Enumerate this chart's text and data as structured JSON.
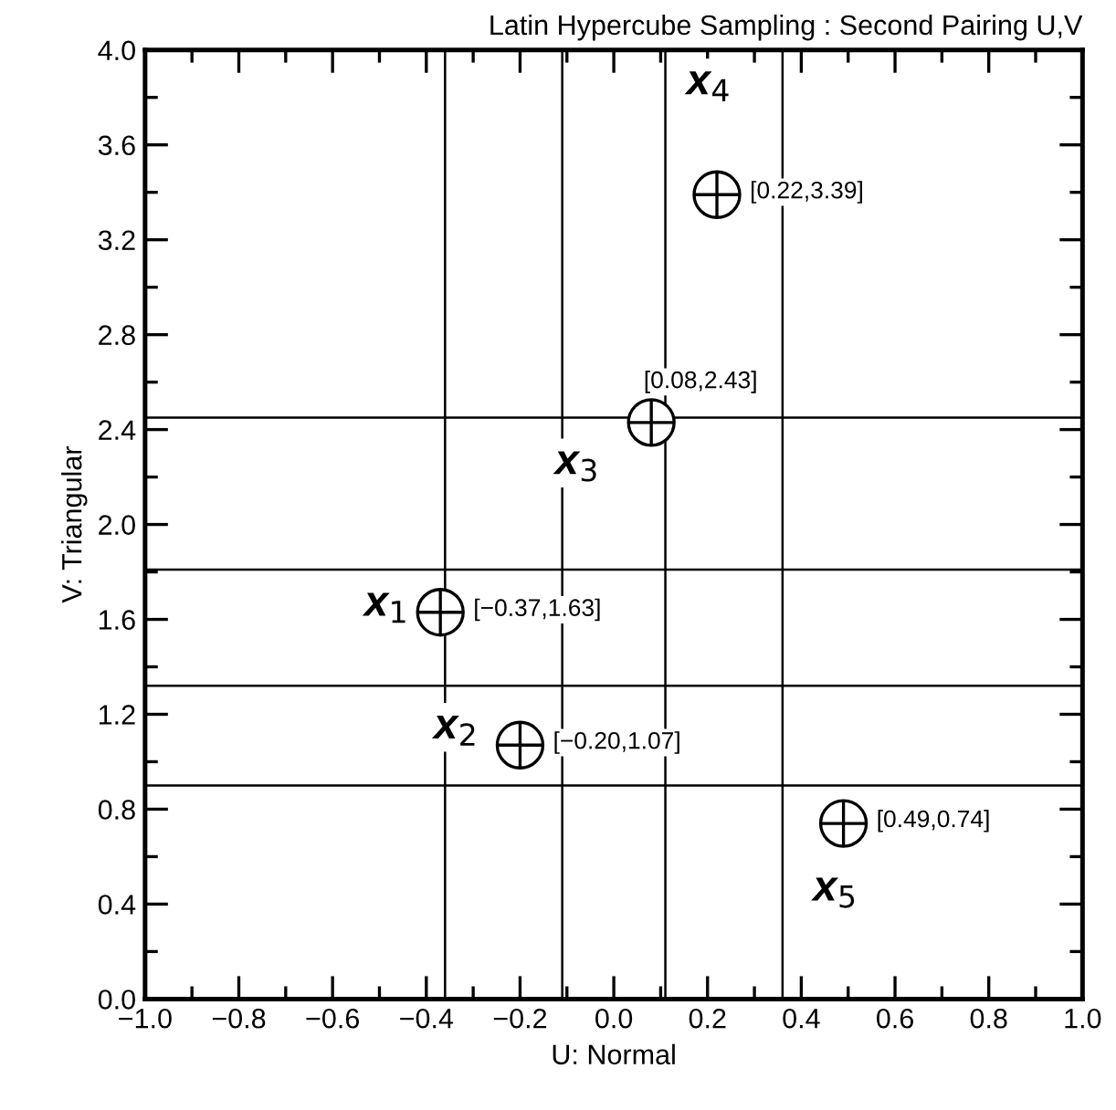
{
  "chart_data": {
    "type": "scatter",
    "title": "Latin Hypercube Sampling : Second Pairing U,V",
    "xlabel": "U: Normal",
    "ylabel": "V: Triangular",
    "series": [
      {
        "color": "#000000",
        "x": [
          -0.37,
          -0.2,
          0.08,
          0.22,
          0.49
        ],
        "values": [
          1.63,
          1.07,
          2.43,
          3.39,
          0.74
        ]
      }
    ],
    "marker": "circle",
    "annotations": [
      {
        "text": "[−0.37,1.63]",
        "x": -0.37,
        "y": 1.63
      },
      {
        "text": "[−0.20,1.07]",
        "x": -0.2,
        "y": 1.07
      },
      {
        "text": "[0.08,2.43]",
        "x": 0.08,
        "y": 2.43
      },
      {
        "text": "[0.22,3.39]",
        "x": 0.22,
        "y": 3.39
      },
      {
        "text": "[0.49,0.74]",
        "x": 0.49,
        "y": 0.74
      },
      {
        "text": "x$_{1}$",
        "x": -0.37,
        "y": 1.63
      },
      {
        "text": "x$_{2}$",
        "x": -0.2,
        "y": 1.07
      },
      {
        "text": "x$_{3}$",
        "x": 0.08,
        "y": 2.43
      },
      {
        "text": "x$_{4}$",
        "x": 0.22,
        "y": 3.39
      },
      {
        "text": "x$_{5}$",
        "x": 0.49,
        "y": 0.74
      }
    ],
    "ref_lines": [
      {
        "axis": "x",
        "value": -0.36
      },
      {
        "axis": "x",
        "value": -0.11
      },
      {
        "axis": "x",
        "value": 0.11
      },
      {
        "axis": "x",
        "value": 0.36
      },
      {
        "axis": "y",
        "value": 0.9
      },
      {
        "axis": "y",
        "value": 1.32
      },
      {
        "axis": "y",
        "value": 1.81
      },
      {
        "axis": "y",
        "value": 2.45
      }
    ],
    "xlim": [
      -1.0,
      1.0
    ],
    "ylim": [
      0.0,
      4.0
    ],
    "xticks": [
      {
        "value": -1.0,
        "label": "−1.0"
      },
      {
        "value": -0.8,
        "label": "−0.8"
      },
      {
        "value": -0.6,
        "label": "−0.6"
      },
      {
        "value": -0.4,
        "label": "−0.4"
      },
      {
        "value": -0.2,
        "label": "−0.2"
      },
      {
        "value": 0.0,
        "label": "0.0"
      },
      {
        "value": 0.2,
        "label": "0.2"
      },
      {
        "value": 0.4,
        "label": "0.4"
      },
      {
        "value": 0.6,
        "label": "0.6"
      },
      {
        "value": 0.8,
        "label": "0.8"
      },
      {
        "value": 1.0,
        "label": "1.0"
      }
    ],
    "yticks": [
      {
        "value": 0.0,
        "label": "0.0"
      },
      {
        "value": 0.4,
        "label": "0.4"
      },
      {
        "value": 0.8,
        "label": "0.8"
      },
      {
        "value": 1.2,
        "label": "1.2"
      },
      {
        "value": 1.6,
        "label": "1.6"
      },
      {
        "value": 2.0,
        "label": "2.0"
      },
      {
        "value": 2.4,
        "label": "2.4"
      },
      {
        "value": 2.8,
        "label": "2.8"
      },
      {
        "value": 3.2,
        "label": "3.2"
      },
      {
        "value": 3.6,
        "label": "3.6"
      },
      {
        "value": 4.0,
        "label": "4.0"
      }
    ],
    "grid": false,
    "legend": false
  }
}
